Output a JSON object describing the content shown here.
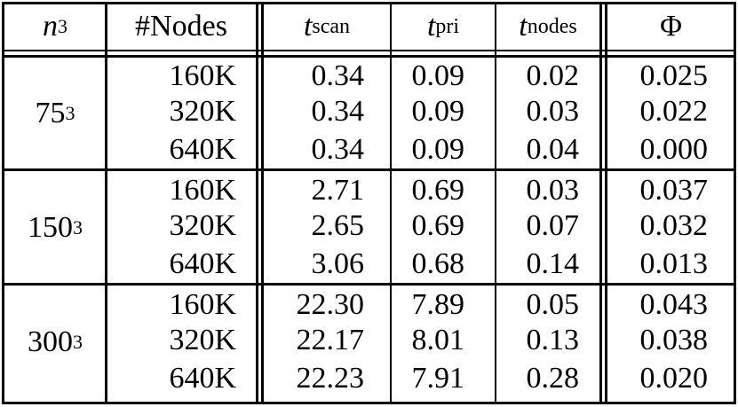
{
  "headers": {
    "n": "n",
    "n_exp": "3",
    "nodes": "#Nodes",
    "t": "t",
    "scan_sub": "scan",
    "pri_sub": "pri",
    "nodes_sub": "nodes",
    "phi": "Φ"
  },
  "groups": [
    {
      "base": "75",
      "exp": "3",
      "rows": [
        {
          "nodes": "160K",
          "t_scan": "0.34",
          "t_pri": "0.09",
          "t_nodes": "0.02",
          "phi": "0.025"
        },
        {
          "nodes": "320K",
          "t_scan": "0.34",
          "t_pri": "0.09",
          "t_nodes": "0.03",
          "phi": "0.022"
        },
        {
          "nodes": "640K",
          "t_scan": "0.34",
          "t_pri": "0.09",
          "t_nodes": "0.04",
          "phi": "0.000"
        }
      ]
    },
    {
      "base": "150",
      "exp": "3",
      "rows": [
        {
          "nodes": "160K",
          "t_scan": "2.71",
          "t_pri": "0.69",
          "t_nodes": "0.03",
          "phi": "0.037"
        },
        {
          "nodes": "320K",
          "t_scan": "2.65",
          "t_pri": "0.69",
          "t_nodes": "0.07",
          "phi": "0.032"
        },
        {
          "nodes": "640K",
          "t_scan": "3.06",
          "t_pri": "0.68",
          "t_nodes": "0.14",
          "phi": "0.013"
        }
      ]
    },
    {
      "base": "300",
      "exp": "3",
      "rows": [
        {
          "nodes": "160K",
          "t_scan": "22.30",
          "t_pri": "7.89",
          "t_nodes": "0.05",
          "phi": "0.043"
        },
        {
          "nodes": "320K",
          "t_scan": "22.17",
          "t_pri": "8.01",
          "t_nodes": "0.13",
          "phi": "0.038"
        },
        {
          "nodes": "640K",
          "t_scan": "22.23",
          "t_pri": "7.91",
          "t_nodes": "0.28",
          "phi": "0.020"
        }
      ]
    }
  ]
}
